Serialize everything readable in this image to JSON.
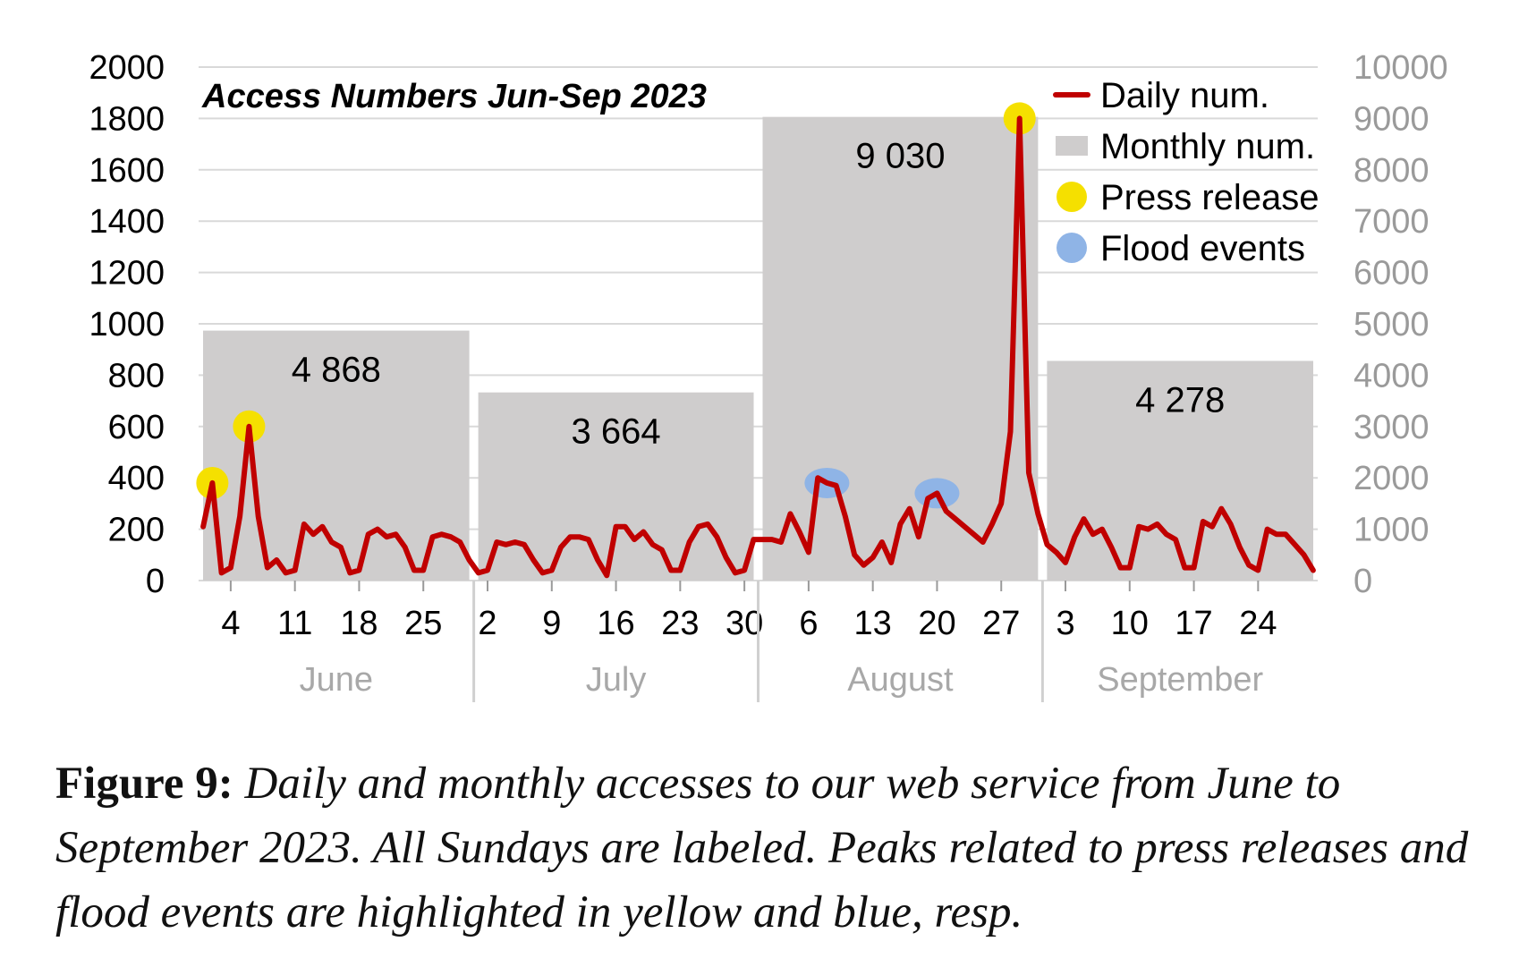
{
  "chart_data": {
    "type": "bar+line",
    "title": "Access Numbers Jun-Sep 2023",
    "left_axis": {
      "ticks": [
        0,
        200,
        400,
        600,
        800,
        1000,
        1200,
        1400,
        1600,
        1800,
        2000
      ],
      "ylim": [
        0,
        2000
      ]
    },
    "right_axis": {
      "ticks": [
        0,
        1000,
        2000,
        3000,
        4000,
        5000,
        6000,
        7000,
        8000,
        9000,
        10000
      ],
      "ylim": [
        0,
        10000
      ]
    },
    "grid": true,
    "legend_position": "top-right",
    "legend": [
      {
        "label": "Daily num.",
        "kind": "line",
        "color": "#c00000"
      },
      {
        "label": "Monthly num.",
        "kind": "rect",
        "color": "#cfcdcd"
      },
      {
        "label": "Press release",
        "kind": "dot",
        "color": "#f5e000"
      },
      {
        "label": "Flood events",
        "kind": "dot",
        "color": "#8fb4e6"
      }
    ],
    "months": [
      {
        "name": "June",
        "start_day": 1,
        "days": 30,
        "total": 4868,
        "label": "4 868"
      },
      {
        "name": "July",
        "start_day": 31,
        "days": 31,
        "total": 3664,
        "label": "3 664"
      },
      {
        "name": "August",
        "start_day": 62,
        "days": 31,
        "total": 9030,
        "label": "9 030"
      },
      {
        "name": "September",
        "start_day": 93,
        "days": 30,
        "total": 4278,
        "label": "4 278"
      }
    ],
    "x_ticks": [
      {
        "day": 4,
        "label": "4"
      },
      {
        "day": 11,
        "label": "11"
      },
      {
        "day": 18,
        "label": "18"
      },
      {
        "day": 25,
        "label": "25"
      },
      {
        "day": 32,
        "label": "2"
      },
      {
        "day": 39,
        "label": "9"
      },
      {
        "day": 46,
        "label": "16"
      },
      {
        "day": 53,
        "label": "23"
      },
      {
        "day": 60,
        "label": "30"
      },
      {
        "day": 67,
        "label": "6"
      },
      {
        "day": 74,
        "label": "13"
      },
      {
        "day": 81,
        "label": "20"
      },
      {
        "day": 88,
        "label": "27"
      },
      {
        "day": 95,
        "label": "3"
      },
      {
        "day": 102,
        "label": "10"
      },
      {
        "day": 109,
        "label": "17"
      },
      {
        "day": 116,
        "label": "24"
      }
    ],
    "daily": [
      210,
      380,
      30,
      50,
      250,
      600,
      250,
      50,
      80,
      30,
      40,
      220,
      180,
      210,
      150,
      130,
      30,
      40,
      180,
      200,
      170,
      180,
      130,
      40,
      40,
      170,
      180,
      170,
      150,
      80,
      30,
      40,
      150,
      140,
      150,
      140,
      80,
      30,
      40,
      130,
      170,
      170,
      160,
      80,
      20,
      210,
      210,
      160,
      190,
      140,
      120,
      40,
      40,
      150,
      210,
      220,
      170,
      90,
      30,
      40,
      160,
      160,
      160,
      150,
      260,
      190,
      110,
      400,
      380,
      370,
      250,
      100,
      60,
      90,
      150,
      70,
      220,
      280,
      170,
      320,
      340,
      270,
      240,
      210,
      180,
      150,
      220,
      300,
      580,
      1800,
      420,
      260,
      140,
      110,
      70,
      170,
      240,
      180,
      200,
      130,
      50,
      50,
      210,
      200,
      220,
      180,
      160,
      50,
      50,
      230,
      210,
      280,
      220,
      130,
      60,
      40,
      200,
      180,
      180,
      140,
      100,
      40
    ],
    "press_release_days": [
      2,
      6,
      90
    ],
    "flood_event_days": [
      69,
      81
    ]
  },
  "caption": {
    "label": "Figure 9:",
    "text": "Daily and monthly accesses to our web service from June to September 2023. All Sundays are labeled. Peaks related to press releases and flood events are highlighted in yellow and blue, resp."
  }
}
